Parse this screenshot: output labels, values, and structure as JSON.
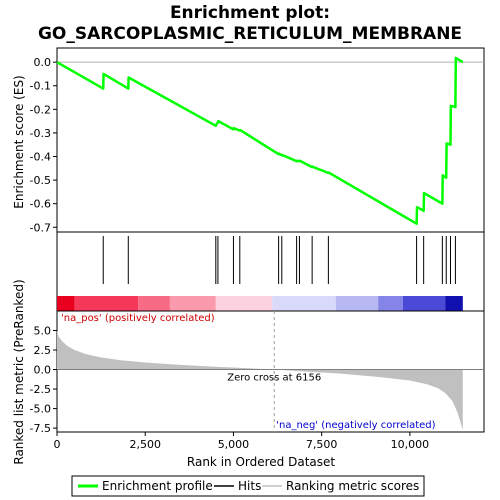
{
  "chart_data": {
    "type": "line",
    "title_line1": "Enrichment plot:",
    "title_line2": "GO_SARCOPLASMIC_RETICULUM_MEMBRANE",
    "top_panel": {
      "ylabel": "Enrichment score (ES)",
      "ylim": [
        -0.72,
        0.06
      ],
      "yticks": [
        0.0,
        -0.1,
        -0.2,
        -0.3,
        -0.4,
        -0.5,
        -0.6,
        -0.7
      ],
      "ytick_labels": [
        "0.0",
        "-0.1",
        "-0.2",
        "-0.3",
        "-0.4",
        "-0.5",
        "-0.6",
        "-0.7"
      ],
      "series": [
        {
          "name": "Enrichment profile",
          "color": "#00ff00",
          "x": [
            0,
            1310,
            1320,
            2020,
            2030,
            4500,
            4510,
            4560,
            4570,
            5000,
            5010,
            5180,
            5190,
            6280,
            6290,
            6370,
            6380,
            6790,
            6800,
            6870,
            6880,
            7230,
            7240,
            7690,
            7700,
            10190,
            10200,
            10390,
            10400,
            10920,
            10930,
            11030,
            11040,
            11150,
            11160,
            11290,
            11300,
            11500
          ],
          "y": [
            0.0,
            -0.112,
            -0.05,
            -0.112,
            -0.065,
            -0.27,
            -0.265,
            -0.255,
            -0.25,
            -0.285,
            -0.28,
            -0.29,
            -0.288,
            -0.39,
            -0.388,
            -0.395,
            -0.393,
            -0.42,
            -0.418,
            -0.42,
            -0.418,
            -0.445,
            -0.443,
            -0.47,
            -0.468,
            -0.685,
            -0.615,
            -0.63,
            -0.555,
            -0.6,
            -0.48,
            -0.49,
            -0.345,
            -0.35,
            -0.185,
            -0.19,
            0.018,
            0.0
          ]
        }
      ]
    },
    "hits": [
      1310,
      2020,
      4500,
      4560,
      5000,
      5180,
      6280,
      6370,
      6790,
      6870,
      7230,
      7690,
      10190,
      10390,
      10920,
      11030,
      11150,
      11290
    ],
    "bottom_panel": {
      "ylabel": "Ranked list metric (PreRanked)",
      "xlabel": "Rank in Ordered Dataset",
      "ylim": [
        -8.0,
        7.5
      ],
      "yticks": [
        5.0,
        2.5,
        0.0,
        -2.5,
        -5.0,
        -7.5
      ],
      "ytick_labels": [
        "5.0",
        "2.5",
        "0.0",
        "-2.5",
        "-5.0",
        "-7.5"
      ],
      "xlim": [
        0,
        12100
      ],
      "xticks": [
        0,
        2500,
        5000,
        7500,
        10000
      ],
      "xtick_labels": [
        "0",
        "2,500",
        "5,000",
        "7,500",
        "10,000"
      ],
      "metric_profile": {
        "name": "Ranking metric scores",
        "x": [
          0,
          50,
          150,
          300,
          500,
          800,
          1200,
          1800,
          2500,
          3500,
          4500,
          5500,
          6156,
          7000,
          8000,
          9000,
          10000,
          10500,
          10800,
          11000,
          11200,
          11350,
          11450,
          11500
        ],
        "y": [
          5.0,
          4.2,
          3.6,
          3.0,
          2.5,
          2.0,
          1.6,
          1.2,
          0.9,
          0.6,
          0.35,
          0.15,
          0.0,
          -0.25,
          -0.5,
          -0.9,
          -1.4,
          -1.9,
          -2.4,
          -3.0,
          -4.0,
          -5.5,
          -7.0,
          -7.8
        ]
      },
      "zero_cross_label": "Zero cross at 6156",
      "zero_cross": 6156,
      "na_pos_label": "'na_pos' (positively correlated)",
      "na_neg_label": "'na_neg' (negatively correlated)"
    },
    "dataset_size": 11500,
    "color_bar_segments": [
      {
        "start": 0,
        "end": 500,
        "color": "#e8001e"
      },
      {
        "start": 500,
        "end": 2300,
        "color": "#f5385a"
      },
      {
        "start": 2300,
        "end": 3200,
        "color": "#f86b85"
      },
      {
        "start": 3200,
        "end": 4500,
        "color": "#fb9aad"
      },
      {
        "start": 4500,
        "end": 6100,
        "color": "#fdd2e0"
      },
      {
        "start": 6100,
        "end": 7900,
        "color": "#d9d9f9"
      },
      {
        "start": 7900,
        "end": 9100,
        "color": "#b8b8f2"
      },
      {
        "start": 9100,
        "end": 9800,
        "color": "#8585e8"
      },
      {
        "start": 9800,
        "end": 11000,
        "color": "#4a4ad6"
      },
      {
        "start": 11000,
        "end": 11500,
        "color": "#1010b0"
      }
    ],
    "legend": [
      {
        "label": "Enrichment profile",
        "color": "#00ff00"
      },
      {
        "label": "Hits",
        "color": "#000000"
      },
      {
        "label": "Ranking metric scores",
        "color": "#c0c0c0"
      }
    ]
  }
}
